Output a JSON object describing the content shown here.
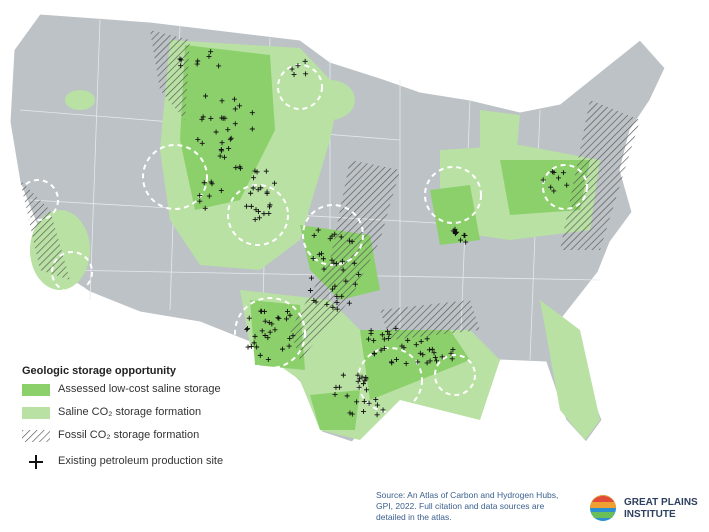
{
  "legend": {
    "title": "Geologic storage opportunity",
    "items": [
      {
        "label": "Assessed low-cost saline storage"
      },
      {
        "label": "Saline CO₂ storage formation"
      },
      {
        "label": "Fossil CO₂ storage formation"
      },
      {
        "label": "Existing petroleum production site"
      }
    ]
  },
  "source": "Source: An Atlas of Carbon and Hydrogen Hubs, GPI, 2022. Full citation and data sources are detailed in the atlas.",
  "logo": {
    "lines": [
      "GREAT PLAINS",
      "INSTITUTE"
    ]
  }
}
